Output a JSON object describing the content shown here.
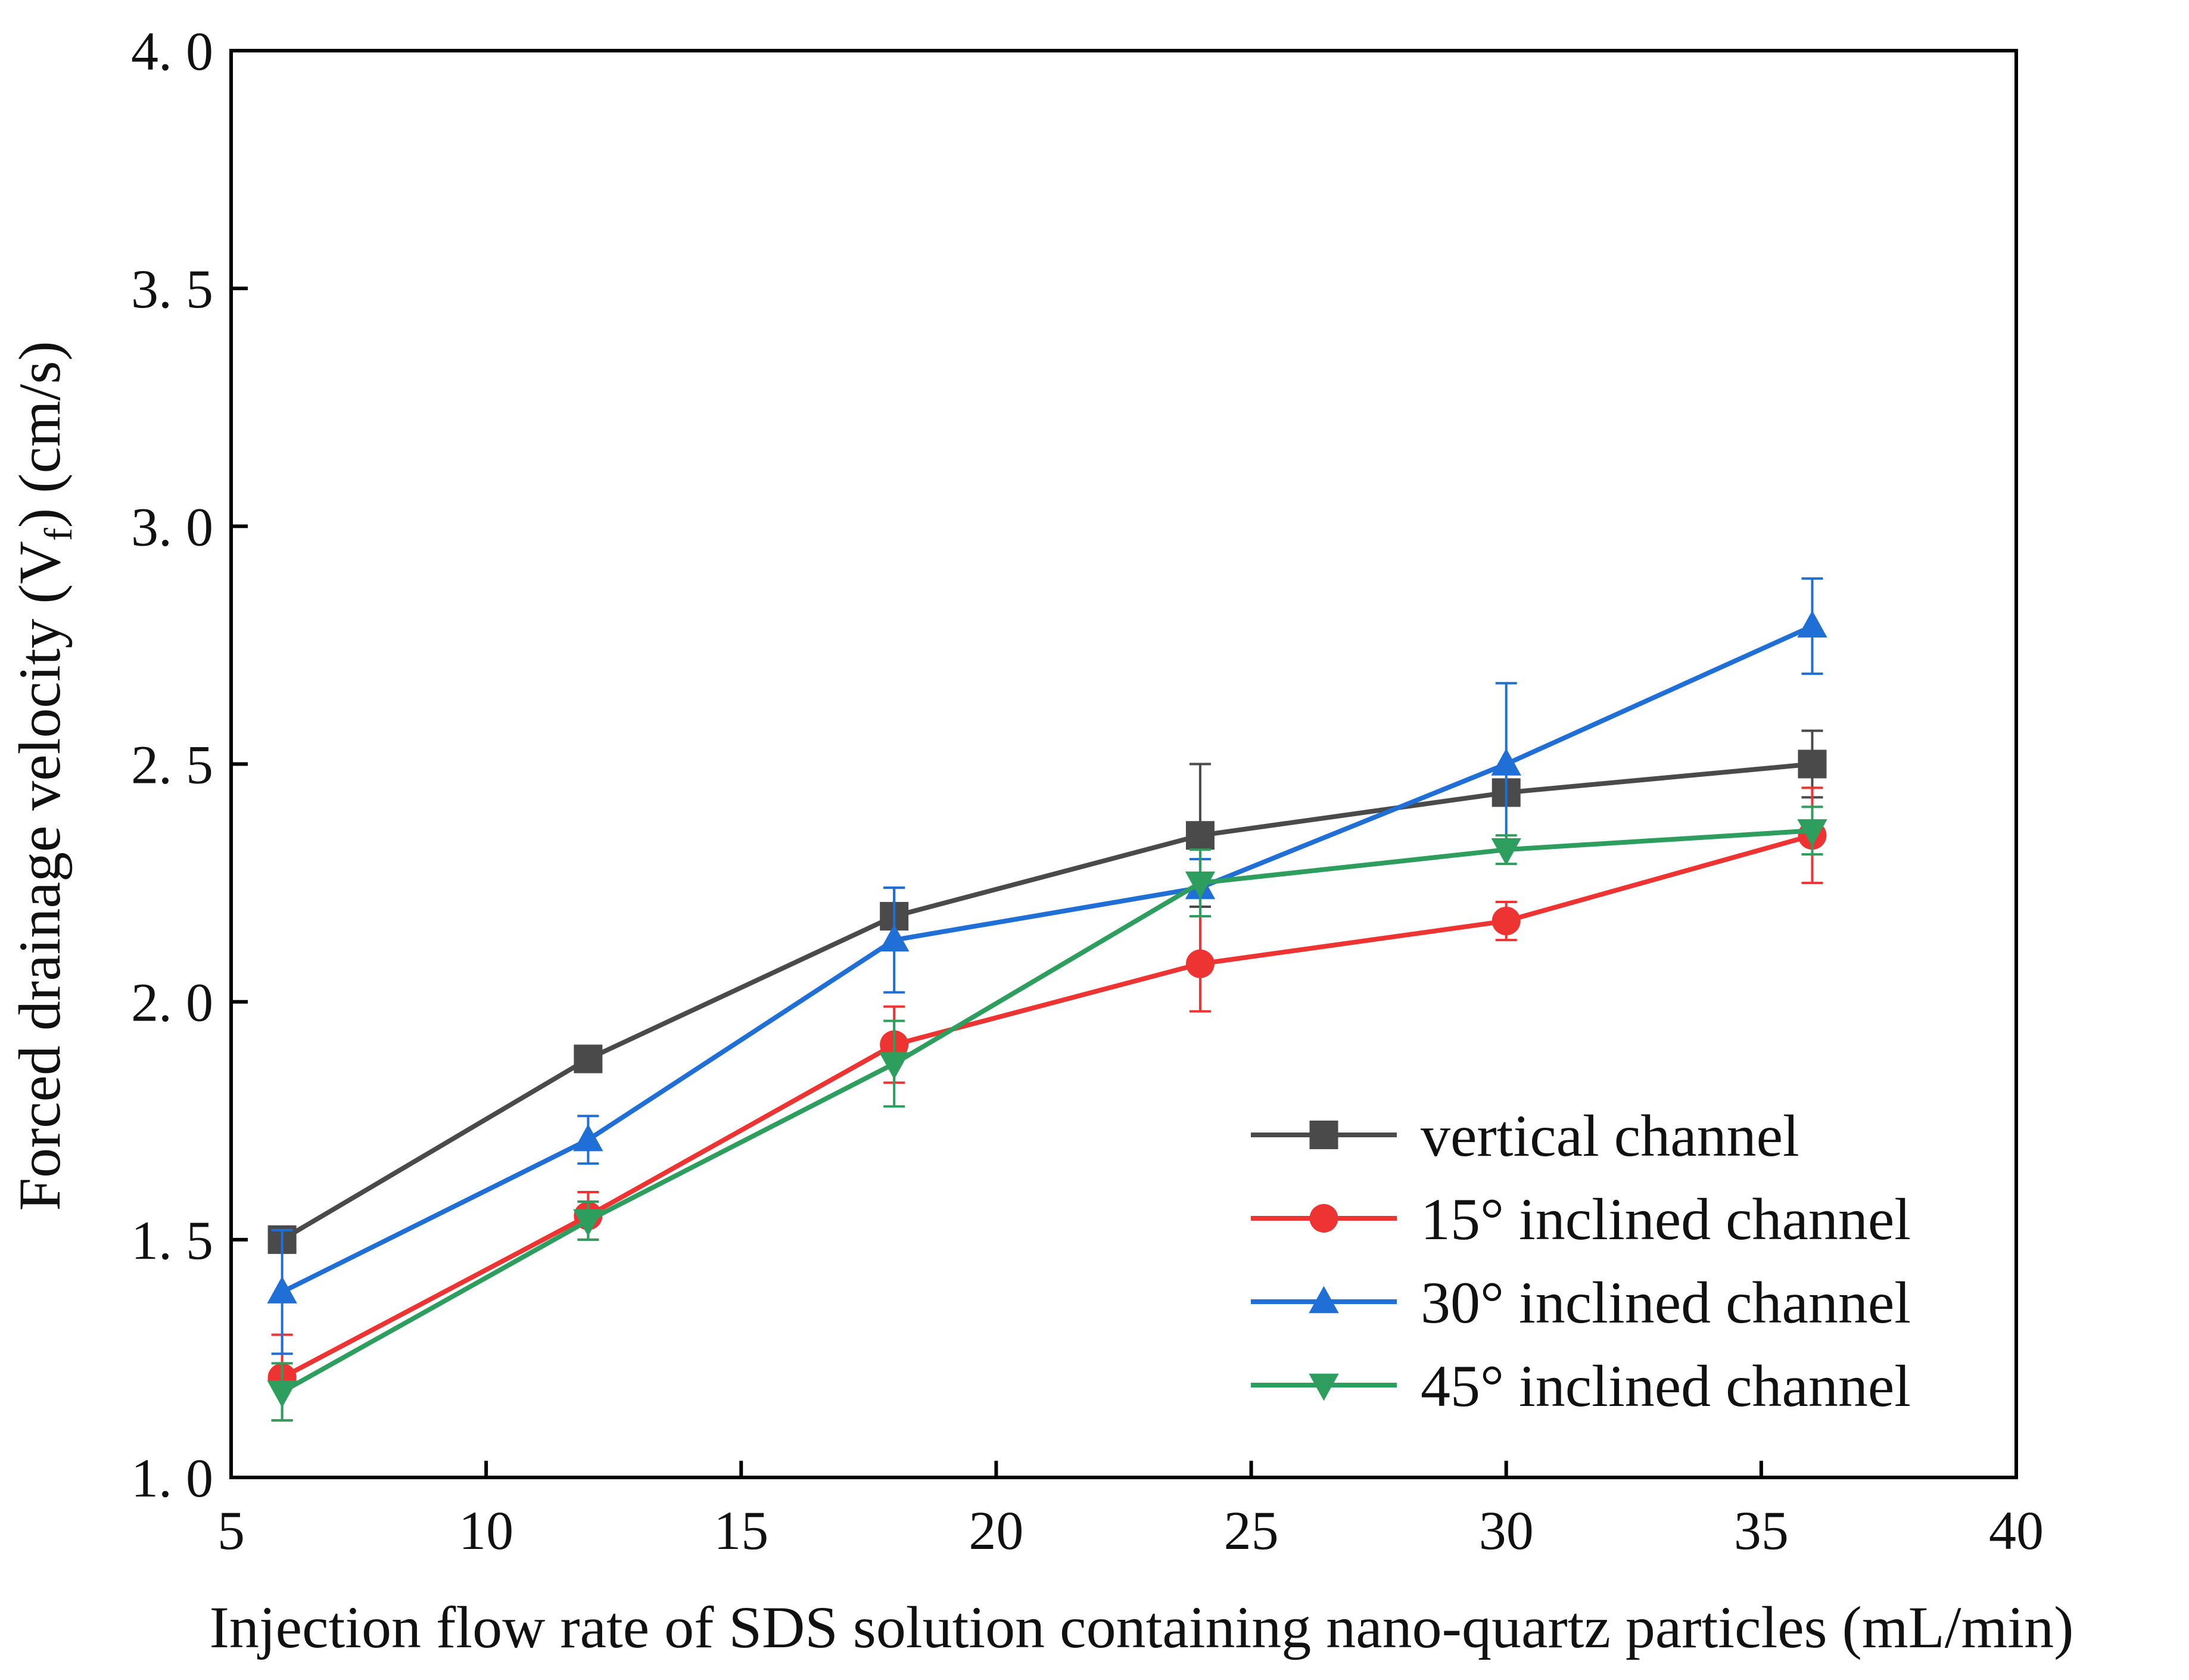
{
  "chart_data": {
    "type": "line",
    "xlabel": "Injection flow rate of SDS solution containing nano-quartz particles (mL/min)",
    "ylabel_parts": {
      "before": "Forced drainage velocity (V",
      "subscript": "f",
      "after": ") (cm/s)"
    },
    "xlim": [
      5,
      40
    ],
    "ylim": [
      1.0,
      4.0
    ],
    "x_ticks": [
      5,
      10,
      15,
      20,
      25,
      30,
      35,
      40
    ],
    "x_tick_labels": [
      "5",
      "10",
      "15",
      "20",
      "25",
      "30",
      "35",
      "40"
    ],
    "y_ticks": [
      1.0,
      1.5,
      2.0,
      2.5,
      3.0,
      3.5,
      4.0
    ],
    "y_tick_labels": [
      "1. 0",
      "1. 5",
      "2. 0",
      "2. 5",
      "3. 0",
      "3. 5",
      "4. 0"
    ],
    "grid": false,
    "legend_position": "bottom-right",
    "x": [
      6,
      12,
      18,
      24,
      30,
      36
    ],
    "series": [
      {
        "name": "vertical channel",
        "color": "#4a4a4a",
        "marker": "square",
        "values": [
          1.5,
          1.88,
          2.18,
          2.35,
          2.44,
          2.5
        ],
        "errors": [
          0.02,
          0.02,
          0.06,
          0.15,
          0.02,
          0.07
        ]
      },
      {
        "name": "15° inclined channel",
        "color": "#ee3333",
        "marker": "circle",
        "values": [
          1.21,
          1.55,
          1.91,
          2.08,
          2.17,
          2.35
        ],
        "errors": [
          0.09,
          0.05,
          0.08,
          0.1,
          0.04,
          0.1
        ]
      },
      {
        "name": "30° inclined channel",
        "color": "#1f6fd6",
        "marker": "triangle-up",
        "values": [
          1.39,
          1.71,
          2.13,
          2.24,
          2.5,
          2.79
        ],
        "errors": [
          0.13,
          0.05,
          0.11,
          0.06,
          0.17,
          0.1
        ]
      },
      {
        "name": "45° inclined channel",
        "color": "#2e9e5e",
        "marker": "triangle-down",
        "values": [
          1.18,
          1.54,
          1.87,
          2.25,
          2.32,
          2.36
        ],
        "errors": [
          0.06,
          0.04,
          0.09,
          0.07,
          0.03,
          0.05
        ]
      }
    ]
  }
}
